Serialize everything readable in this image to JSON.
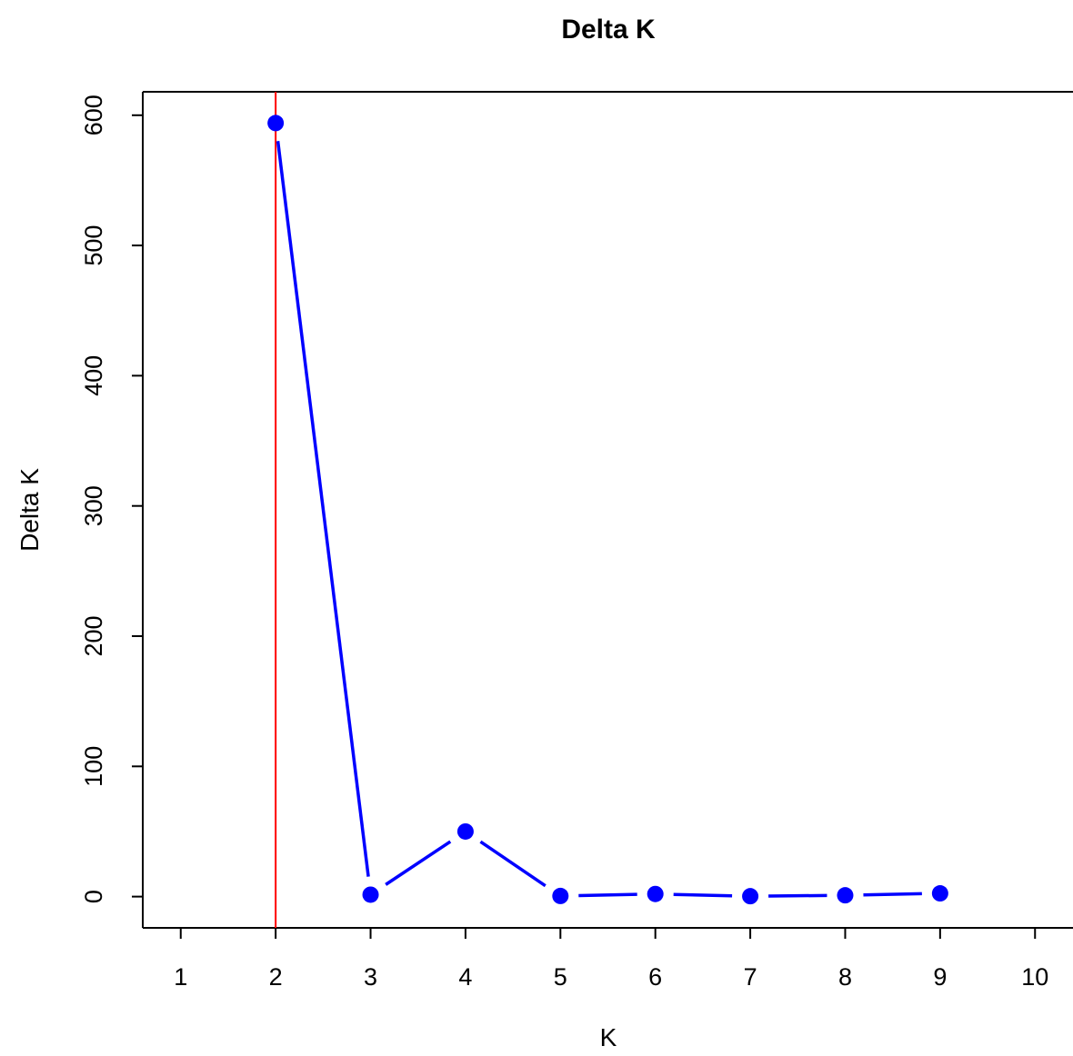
{
  "chart_data": {
    "type": "line",
    "title": "Delta K",
    "xlabel": "K",
    "ylabel": "Delta K",
    "x": [
      2,
      3,
      4,
      5,
      6,
      7,
      8,
      9
    ],
    "series": [
      {
        "values": [
          594,
          1.5,
          50,
          0.5,
          2,
          0.3,
          1,
          2.5
        ]
      }
    ],
    "xlim": [
      0.6,
      10.4
    ],
    "ylim": [
      -24,
      618
    ],
    "xticks": [
      1,
      2,
      3,
      4,
      5,
      6,
      7,
      8,
      9,
      10
    ],
    "yticks": [
      0,
      100,
      200,
      300,
      400,
      500,
      600
    ],
    "xtick_labels": [
      "1",
      "2",
      "3",
      "4",
      "5",
      "6",
      "7",
      "8",
      "9",
      "10"
    ],
    "ytick_labels": [
      "0",
      "100",
      "200",
      "300",
      "400",
      "500",
      "600"
    ],
    "vline_x": 2,
    "grid": false,
    "colors": {
      "line": "#0000ff",
      "marker": "#0000ff",
      "vline": "#ff0000"
    }
  }
}
